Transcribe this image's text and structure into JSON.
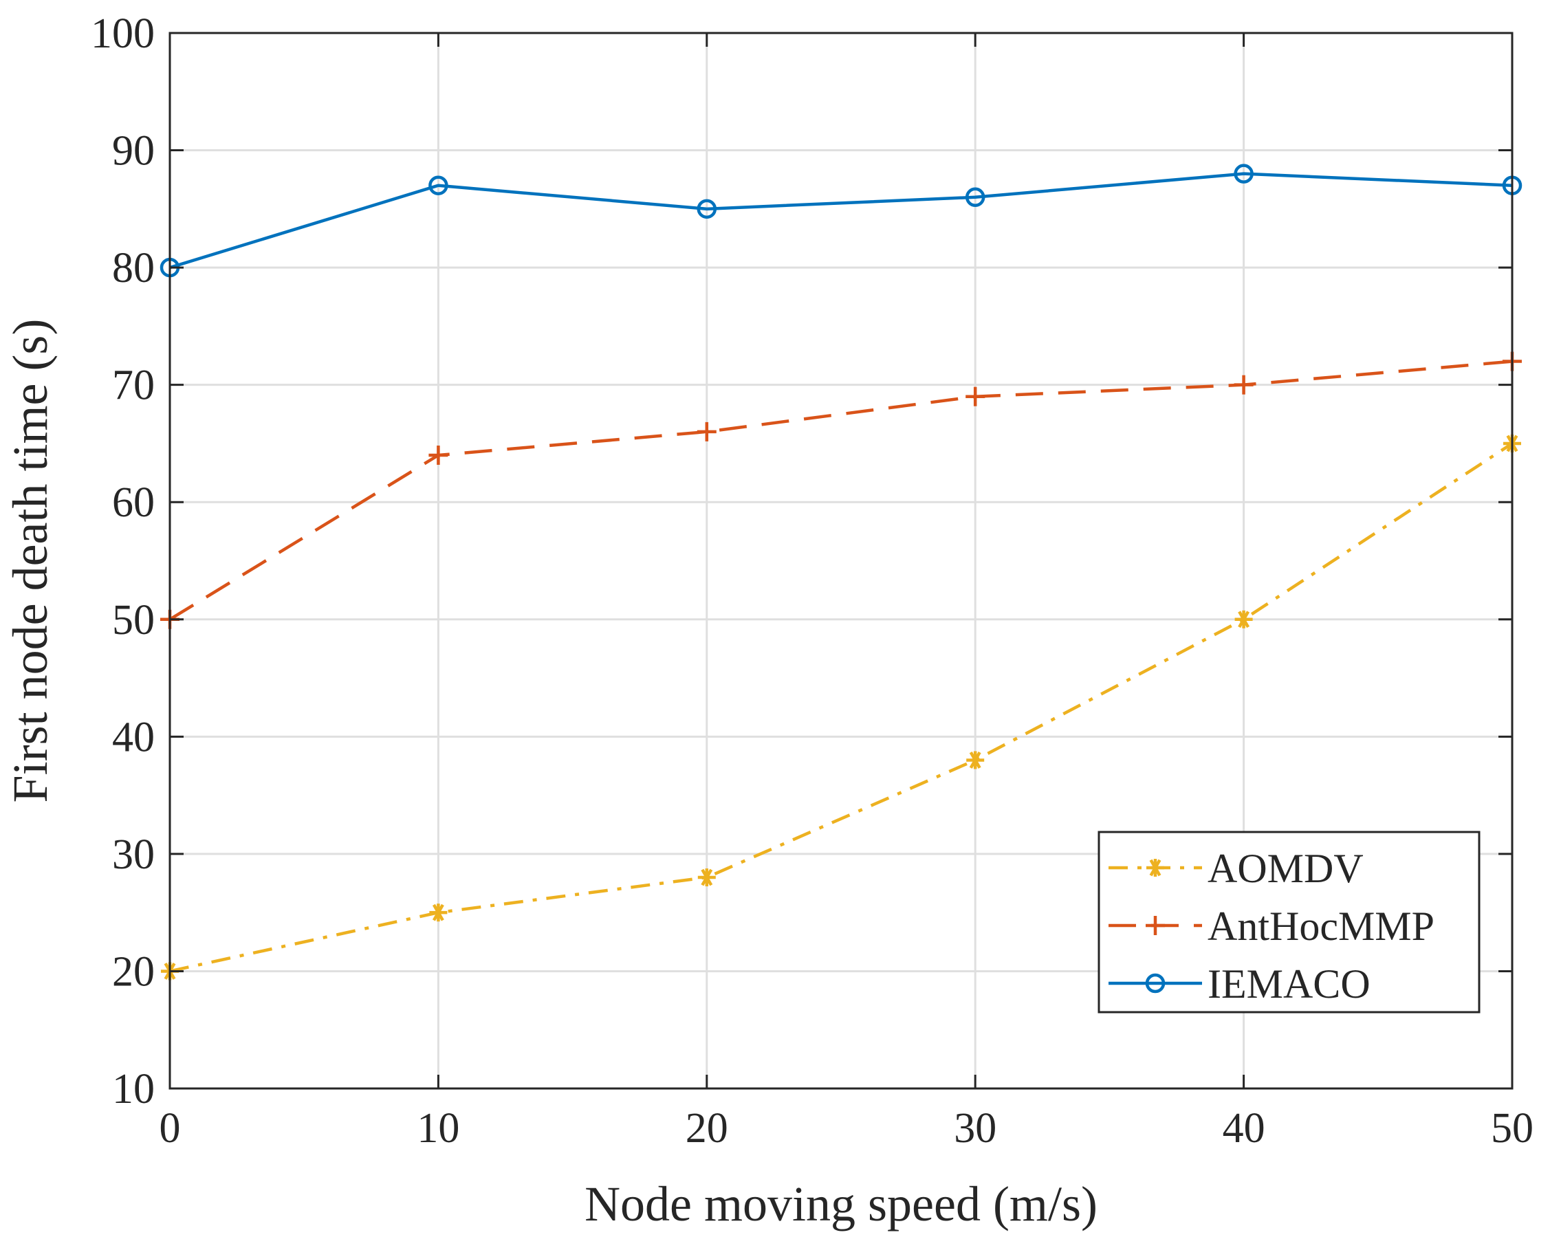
{
  "chart_data": {
    "type": "line",
    "title": "",
    "xlabel": "Node moving speed (m/s)",
    "ylabel": "First node death time (s)",
    "xlim": [
      0,
      50
    ],
    "ylim": [
      10,
      100
    ],
    "xticks": [
      0,
      10,
      20,
      30,
      40,
      50
    ],
    "yticks": [
      10,
      20,
      30,
      40,
      50,
      60,
      70,
      80,
      90,
      100
    ],
    "grid": true,
    "legend_position": "bottom-right",
    "x": [
      0,
      10,
      20,
      30,
      40,
      50
    ],
    "series": [
      {
        "name": "AOMDV",
        "values": [
          20,
          25,
          28,
          38,
          50,
          65
        ],
        "color": "#EDB120",
        "line_style": "dash-dot",
        "marker": "asterisk"
      },
      {
        "name": "AntHocMMP",
        "values": [
          50,
          64,
          66,
          69,
          70,
          72
        ],
        "color": "#D95319",
        "line_style": "dashed",
        "marker": "plus"
      },
      {
        "name": "IEMACO",
        "values": [
          80,
          87,
          85,
          86,
          88,
          87
        ],
        "color": "#0072BD",
        "line_style": "solid",
        "marker": "circle"
      }
    ]
  }
}
